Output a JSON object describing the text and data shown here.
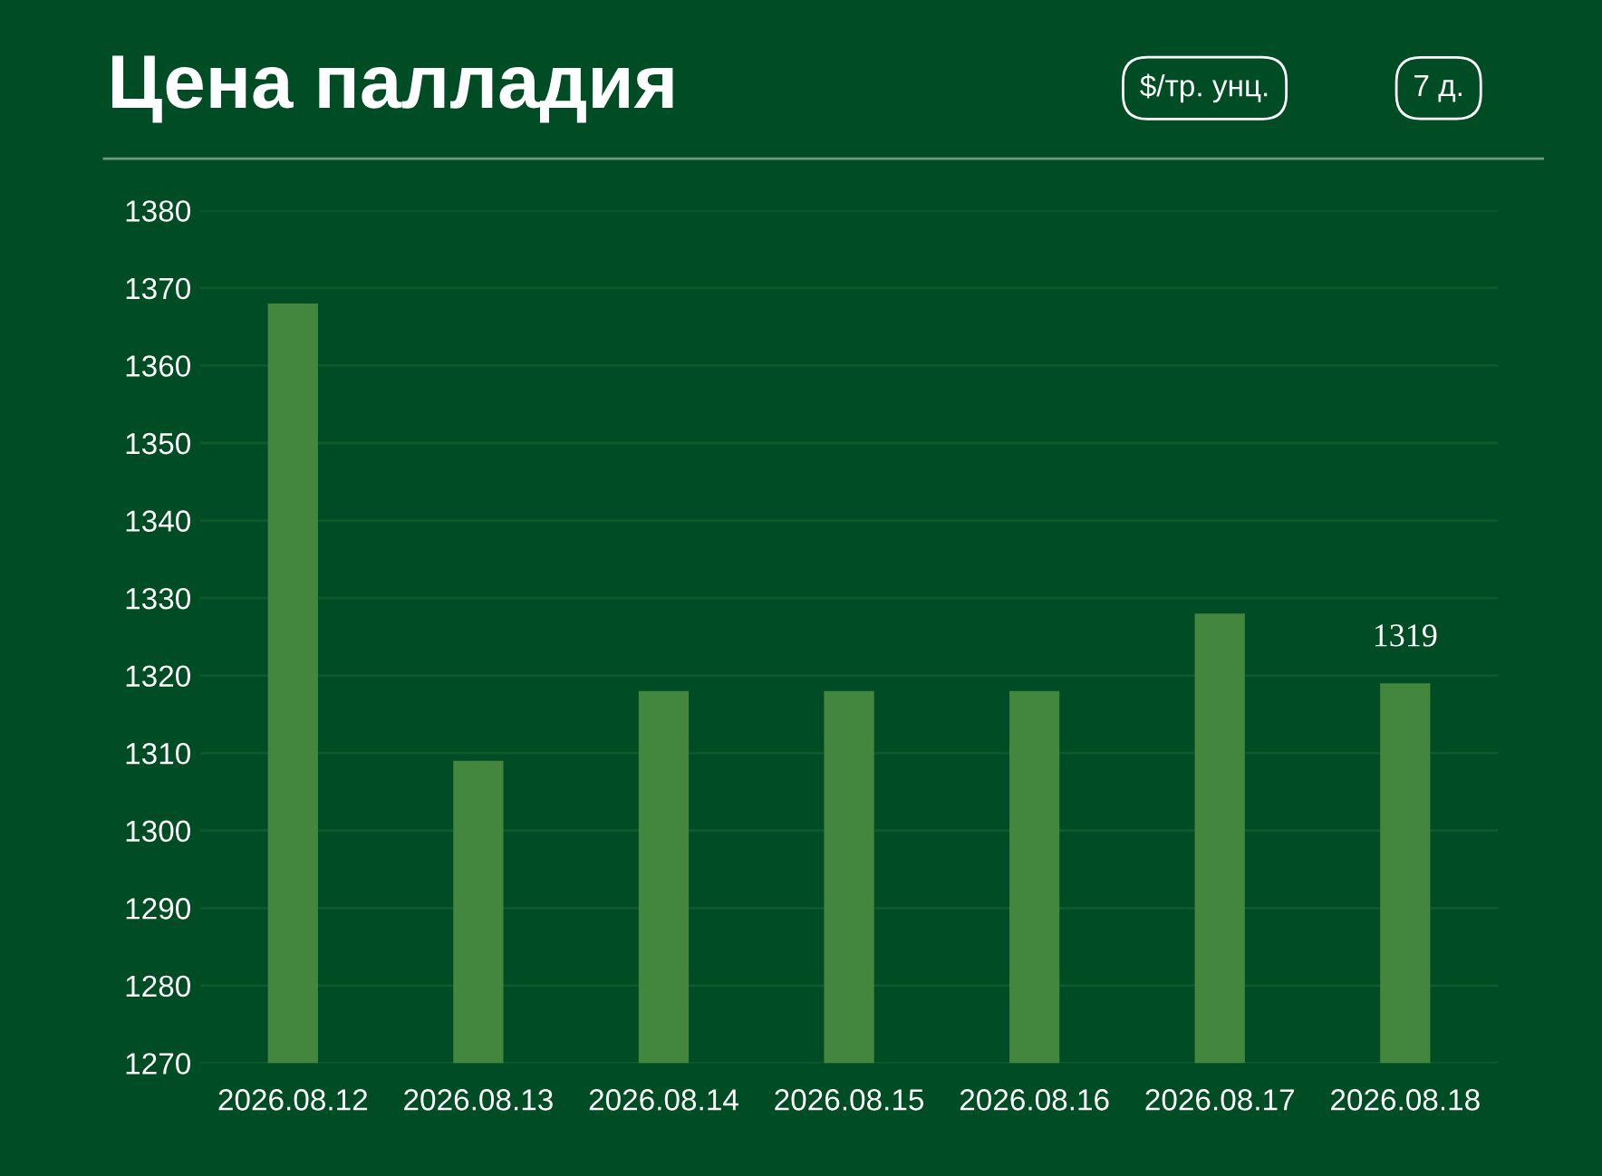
{
  "chart_data": {
    "type": "bar",
    "title": "Цена палладия",
    "annotations": [
      "$/тр. унц.",
      "7 д."
    ],
    "categories": [
      "2026.08.12",
      "2026.08.13",
      "2026.08.14",
      "2026.08.15",
      "2026.08.16",
      "2026.08.17",
      "2026.08.18"
    ],
    "values": [
      1368,
      1309,
      1318,
      1318,
      1318,
      1328,
      1319
    ],
    "value_labels": [
      null,
      null,
      null,
      null,
      null,
      null,
      "1319"
    ],
    "color": "#43873f",
    "ylim": [
      1270,
      1380
    ],
    "yticks": [
      1270,
      1280,
      1290,
      1300,
      1310,
      1320,
      1330,
      1340,
      1350,
      1360,
      1370,
      1380
    ],
    "grid": "y"
  }
}
